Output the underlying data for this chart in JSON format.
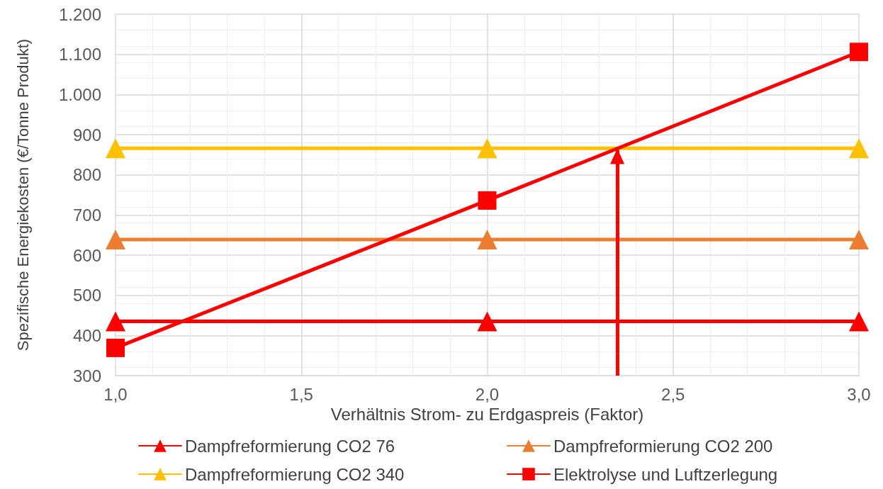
{
  "chart_data": {
    "type": "line",
    "xlabel": "Verhältnis Strom- zu Erdgaspreis (Faktor)",
    "ylabel": "Spezifische Energiekosten (€/Tonne Produkt)",
    "x": [
      1,
      2,
      3
    ],
    "series": [
      {
        "name": "Dampfreformierung CO2 76",
        "color": "#ff0000",
        "marker": "triangle",
        "values": [
          435,
          435,
          435
        ]
      },
      {
        "name": "Dampfreformierung CO2 200",
        "color": "#ed7d31",
        "marker": "triangle",
        "values": [
          639,
          639,
          639
        ]
      },
      {
        "name": "Dampfreformierung CO2 340",
        "color": "#ffc000",
        "marker": "triangle",
        "values": [
          866,
          866,
          866
        ]
      },
      {
        "name": "Elektrolyse und Luftzerlegung",
        "color": "#ff0000",
        "marker": "square",
        "values": [
          369,
          736,
          1106
        ]
      }
    ],
    "xlim": [
      1,
      3
    ],
    "xticks": [
      {
        "value": 1,
        "label": "1,0"
      },
      {
        "value": 1.5,
        "label": "1,5"
      },
      {
        "value": 2,
        "label": "2,0"
      },
      {
        "value": 2.5,
        "label": "2,5"
      },
      {
        "value": 3,
        "label": "3,0"
      }
    ],
    "ylim": [
      300,
      1200
    ],
    "yticks": [
      300,
      400,
      500,
      600,
      700,
      800,
      900,
      {
        "value": 1000,
        "label": "1.000"
      },
      {
        "value": 1100,
        "label": "1.100"
      },
      {
        "value": 1200,
        "label": "1.200"
      }
    ],
    "ref_lines": [
      {
        "axis": "x",
        "value": 2.35,
        "color": "#ff0000"
      }
    ],
    "grid": true,
    "legend": "bottom",
    "line_style": "solid"
  }
}
